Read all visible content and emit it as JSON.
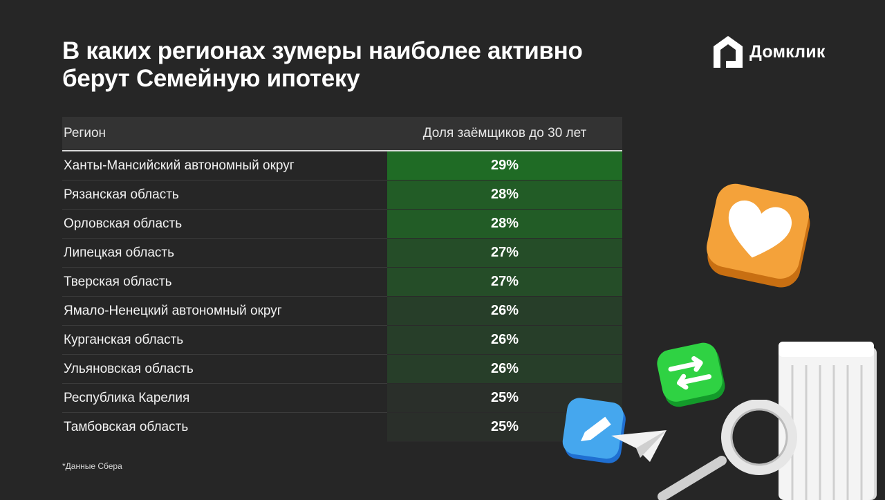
{
  "title_lines": [
    "В каких регионах зумеры наиболее активно",
    "берут Семейную ипотеку"
  ],
  "logo": {
    "text": "Домклик",
    "icon": "domclick-house-icon"
  },
  "table": {
    "headers": [
      "Регион",
      "Доля заёмщиков до 30 лет"
    ],
    "rows": [
      {
        "region": "Ханты-Мансийский автономный округ",
        "share": "29%"
      },
      {
        "region": "Рязанская область",
        "share": "28%"
      },
      {
        "region": "Орловская область",
        "share": "28%"
      },
      {
        "region": "Липецкая область",
        "share": "27%"
      },
      {
        "region": "Тверская область",
        "share": "27%"
      },
      {
        "region": "Ямало-Ненецкий автономный округ",
        "share": "26%"
      },
      {
        "region": "Курганская область",
        "share": "26%"
      },
      {
        "region": "Ульяновская область",
        "share": "26%"
      },
      {
        "region": "Республика Карелия",
        "share": "25%"
      },
      {
        "region": "Тамбовская область",
        "share": "25%"
      }
    ]
  },
  "footnote": "*Данные Сбера",
  "colors": {
    "background": "#262626",
    "header_bg": "#333333",
    "heat_high": "#1f6b25",
    "heat_low": "#2a2f2a"
  },
  "chart_data": {
    "type": "table",
    "columns": [
      "Регион",
      "Доля заёмщиков до 30 лет"
    ],
    "categories": [
      "Ханты-Мансийский автономный округ",
      "Рязанская область",
      "Орловская область",
      "Липецкая область",
      "Тверская область",
      "Ямало-Ненецкий автономный округ",
      "Курганская область",
      "Ульяновская область",
      "Республика Карелия",
      "Тамбовская область"
    ],
    "values": [
      29,
      28,
      28,
      27,
      27,
      26,
      26,
      26,
      25,
      25
    ],
    "unit": "%"
  }
}
